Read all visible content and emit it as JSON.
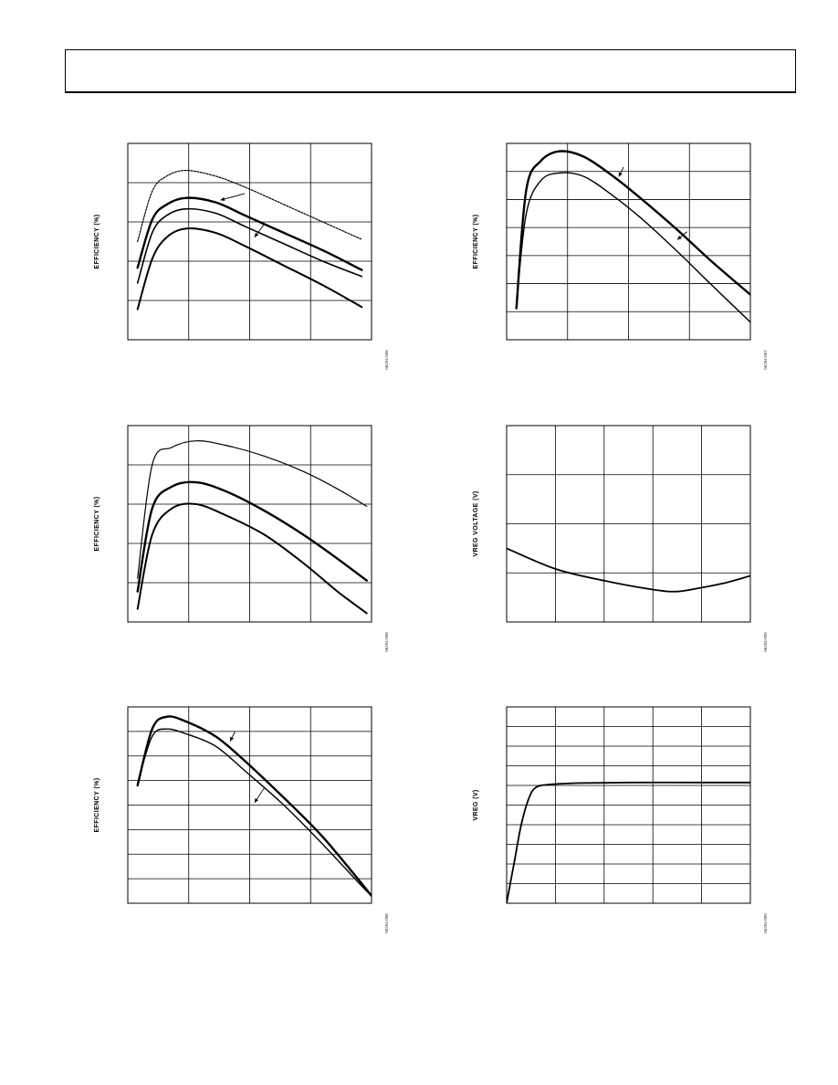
{
  "chart_data": [
    {
      "type": "line",
      "ylabel": "EFFICIENCY (%)",
      "figure_code": "06294-006",
      "x": [
        0.2,
        0.5,
        0.8,
        1.2,
        1.8,
        2.4,
        3.2,
        4.0,
        4.8
      ],
      "series": [
        {
          "values": [
            77.5,
            89.0,
            92.5,
            93.8,
            92.5,
            90.0,
            86.0,
            82.0,
            78.0
          ],
          "dash": true,
          "width": 1.2
        },
        {
          "values": [
            71.5,
            82.5,
            86.0,
            87.5,
            86.5,
            83.5,
            79.5,
            75.5,
            71.0
          ],
          "width": 2.4
        },
        {
          "values": [
            68.0,
            79.5,
            83.5,
            85.0,
            84.0,
            81.0,
            77.0,
            73.0,
            69.5
          ],
          "width": 1.6
        },
        {
          "values": [
            62.0,
            73.5,
            78.5,
            80.5,
            79.5,
            76.5,
            72.0,
            67.5,
            62.5
          ],
          "width": 2.0
        }
      ],
      "xlim": [
        0,
        5
      ],
      "ylim": [
        55,
        100
      ],
      "ygrid": 5,
      "xgrid": 4,
      "annotations": [
        {
          "x1": 1.9,
          "y1": 87.0,
          "x2": 2.4,
          "y2": 88.5
        },
        {
          "x1": 2.6,
          "y1": 78.5,
          "x2": 2.8,
          "y2": 81.5
        }
      ]
    },
    {
      "type": "line",
      "ylabel": "EFFICIENCY (%)",
      "figure_code": "06294-007",
      "x": [
        0.2,
        0.4,
        0.7,
        1.1,
        1.6,
        2.2,
        2.8,
        3.5,
        4.2,
        5.0
      ],
      "series": [
        {
          "values": [
            58.0,
            88.0,
            95.5,
            98.0,
            96.5,
            91.5,
            85.5,
            78.0,
            70.0,
            61.5
          ],
          "width": 2.4
        },
        {
          "values": [
            59.0,
            82.0,
            90.5,
            92.5,
            91.5,
            86.5,
            80.5,
            72.5,
            64.0,
            54.5
          ],
          "width": 1.4
        }
      ],
      "xlim": [
        0,
        5
      ],
      "ylim": [
        50,
        100
      ],
      "ygrid": 7,
      "xgrid": 4,
      "annotations": [
        {
          "x1": 2.3,
          "y1": 91.5,
          "x2": 2.4,
          "y2": 94.0
        },
        {
          "x1": 3.5,
          "y1": 75.5,
          "x2": 3.7,
          "y2": 77.5
        }
      ]
    },
    {
      "type": "line",
      "ylabel": "EFFICIENCY (%)",
      "figure_code": "06294-008",
      "x": [
        0.2,
        0.5,
        0.9,
        1.4,
        2.0,
        2.8,
        3.6,
        4.3,
        4.9
      ],
      "series": [
        {
          "values": [
            65.0,
            91.0,
            95.0,
            96.5,
            95.5,
            93.0,
            89.5,
            85.5,
            81.5
          ],
          "width": 1.2
        },
        {
          "values": [
            62.0,
            81.0,
            86.0,
            87.0,
            85.0,
            80.5,
            75.0,
            69.5,
            64.5
          ],
          "width": 2.4
        },
        {
          "values": [
            58.0,
            75.0,
            81.0,
            82.0,
            79.5,
            75.0,
            68.5,
            62.0,
            57.0
          ],
          "width": 2.0
        }
      ],
      "xlim": [
        0,
        5
      ],
      "ylim": [
        55,
        100
      ],
      "ygrid": 5,
      "xgrid": 4,
      "annotations": []
    },
    {
      "type": "line",
      "ylabel": "VREG VOLTAGE (V)",
      "figure_code": "06294-009",
      "x": [
        0,
        1,
        2,
        3,
        3.5,
        4,
        4.5,
        5
      ],
      "series": [
        {
          "values": [
            3.225,
            3.204,
            3.192,
            3.183,
            3.181,
            3.185,
            3.19,
            3.197
          ],
          "width": 1.8
        }
      ],
      "xlim": [
        0,
        5
      ],
      "ylim": [
        3.15,
        3.35
      ],
      "ygrid": 4,
      "xgrid": 5,
      "annotations": []
    },
    {
      "type": "line",
      "ylabel": "EFFICIENCY (%)",
      "figure_code": "06294-008",
      "x": [
        0.2,
        0.5,
        0.8,
        1.2,
        1.8,
        2.4,
        3.2,
        4.0,
        4.8,
        5.0
      ],
      "series": [
        {
          "values": [
            79.0,
            90.5,
            93.0,
            92.0,
            89.0,
            84.0,
            76.5,
            68.5,
            59.0,
            56.5
          ],
          "width": 2.4
        },
        {
          "values": [
            79.5,
            89.0,
            90.5,
            89.5,
            87.0,
            82.0,
            75.0,
            67.0,
            58.5,
            56.5
          ],
          "width": 1.4
        }
      ],
      "xlim": [
        0,
        5
      ],
      "ylim": [
        55,
        95
      ],
      "ygrid": 8,
      "xgrid": 4,
      "annotations": [
        {
          "x1": 2.1,
          "y1": 88.0,
          "x2": 2.2,
          "y2": 90.0
        },
        {
          "x1": 2.6,
          "y1": 75.5,
          "x2": 2.8,
          "y2": 78.5
        }
      ]
    },
    {
      "type": "line",
      "ylabel": "VREG (V)",
      "figure_code": "06294-009",
      "x": [
        0,
        0.15,
        0.3,
        0.45,
        0.6,
        0.9,
        1.5,
        2.5,
        4.0,
        5.0
      ],
      "series": [
        {
          "values": [
            0.0,
            2.0,
            4.0,
            5.3,
            5.9,
            6.05,
            6.12,
            6.15,
            6.15,
            6.15
          ],
          "width": 1.8
        }
      ],
      "xlim": [
        0,
        5
      ],
      "ylim": [
        0,
        10
      ],
      "ygrid": 10,
      "xgrid": 5,
      "annotations": []
    }
  ]
}
